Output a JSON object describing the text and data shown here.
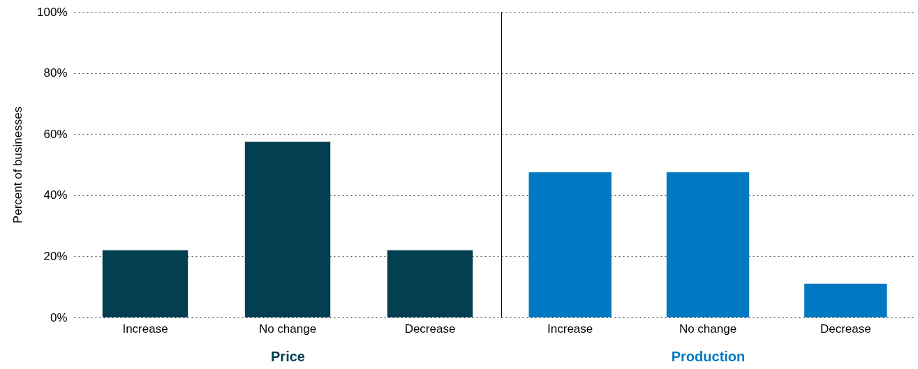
{
  "chart_data": [
    {
      "type": "bar",
      "xlabel": "Price",
      "ylabel": "Percent of businesses",
      "categories": [
        "Increase",
        "No change",
        "Decrease"
      ],
      "series": [
        {
          "color": "#023f50",
          "values": [
            22,
            57.5,
            22
          ]
        }
      ],
      "ylim": [
        0,
        100
      ],
      "yticks": [
        {
          "value": 0,
          "label": "0%"
        },
        {
          "value": 20,
          "label": "20%"
        },
        {
          "value": 40,
          "label": "40%"
        },
        {
          "value": 60,
          "label": "60%"
        },
        {
          "value": 80,
          "label": "80%"
        },
        {
          "value": 100,
          "label": "100%"
        }
      ],
      "grid": "y"
    },
    {
      "type": "bar",
      "xlabel": "Production",
      "categories": [
        "Increase",
        "No change",
        "Decrease"
      ],
      "series": [
        {
          "color": "#0079c2",
          "values": [
            47.5,
            47.5,
            11
          ]
        }
      ],
      "ylim": [
        0,
        100
      ],
      "yticks": [
        {
          "value": 0,
          "label": null
        },
        {
          "value": 20,
          "label": null
        },
        {
          "value": 40,
          "label": null
        },
        {
          "value": 60,
          "label": null
        },
        {
          "value": 80,
          "label": null
        },
        {
          "value": 100,
          "label": null
        }
      ],
      "grid": "y",
      "tick_labels": "x"
    }
  ]
}
